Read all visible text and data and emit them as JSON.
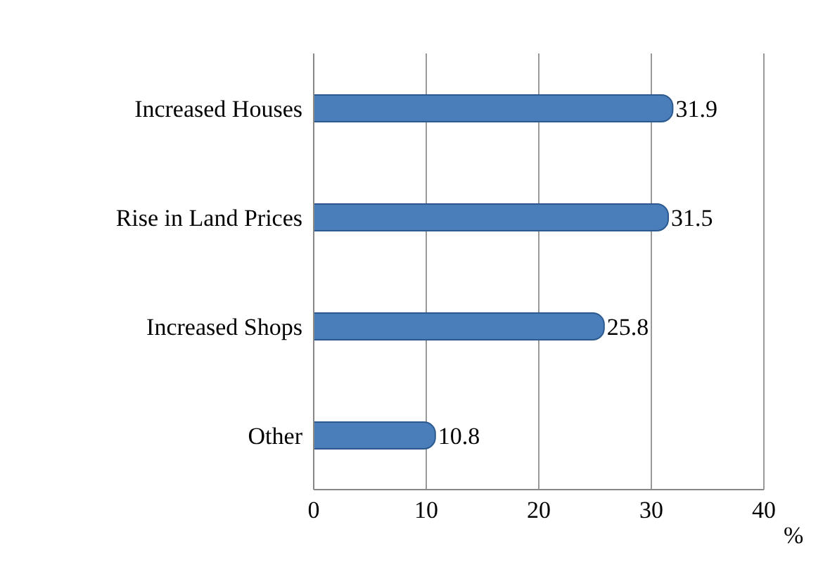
{
  "chart_data": {
    "type": "bar",
    "orientation": "horizontal",
    "categories": [
      "Increased Houses",
      "Rise in Land Prices",
      "Increased Shops",
      "Other"
    ],
    "values": [
      31.9,
      31.5,
      25.8,
      10.8
    ],
    "color": "#4a7ebb",
    "xlim": [
      0,
      40
    ],
    "xticks": [
      0,
      10,
      20,
      30,
      40
    ],
    "xlabel": "%",
    "grid": "x",
    "data_labels": true
  }
}
